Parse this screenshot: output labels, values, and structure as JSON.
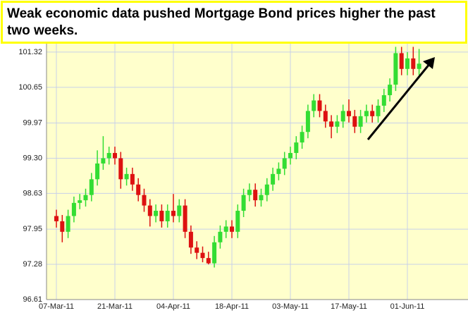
{
  "chart_data": {
    "type": "candlestick",
    "title": "Weak economic data pushed Mortgage Bond prices higher the past two weeks.",
    "categories": [
      "07-Mar-11",
      null,
      null,
      null,
      null,
      null,
      null,
      null,
      null,
      null,
      "21-Mar-11",
      null,
      null,
      null,
      null,
      null,
      null,
      null,
      null,
      null,
      "04-Apr-11",
      null,
      null,
      null,
      null,
      null,
      null,
      null,
      null,
      null,
      "18-Apr-11",
      null,
      null,
      null,
      null,
      null,
      null,
      null,
      null,
      null,
      "03-May-11",
      null,
      null,
      null,
      null,
      null,
      null,
      null,
      null,
      null,
      "17-May-11",
      null,
      null,
      null,
      null,
      null,
      null,
      null,
      null,
      null,
      "01-Jun-11",
      null,
      null
    ],
    "open": [
      98.2,
      98.1,
      97.9,
      98.2,
      98.45,
      98.5,
      98.6,
      98.9,
      99.2,
      99.3,
      99.4,
      99.3,
      98.9,
      99.0,
      98.8,
      98.6,
      98.4,
      98.2,
      98.3,
      98.1,
      98.3,
      98.2,
      98.4,
      97.9,
      97.6,
      97.5,
      97.4,
      97.3,
      97.7,
      97.9,
      98.0,
      97.9,
      98.3,
      98.6,
      98.7,
      98.5,
      98.6,
      98.8,
      99.0,
      99.1,
      99.3,
      99.4,
      99.6,
      99.8,
      100.2,
      100.4,
      100.2,
      100.0,
      99.9,
      100.0,
      100.2,
      100.1,
      99.9,
      100.1,
      100.2,
      100.1,
      100.3,
      100.5,
      100.7,
      101.3,
      101.0,
      101.2,
      101.0
    ],
    "high": [
      98.32,
      98.22,
      98.32,
      98.57,
      98.62,
      98.72,
      99.02,
      99.45,
      99.72,
      99.52,
      99.52,
      99.42,
      99.12,
      99.12,
      98.92,
      98.72,
      98.52,
      98.42,
      98.42,
      98.42,
      98.62,
      98.52,
      98.52,
      98.02,
      97.72,
      97.62,
      97.52,
      97.82,
      98.02,
      98.12,
      98.12,
      98.42,
      98.72,
      98.82,
      98.82,
      98.72,
      98.92,
      99.12,
      99.22,
      99.42,
      99.52,
      99.72,
      99.92,
      100.32,
      100.52,
      100.52,
      100.32,
      100.12,
      100.12,
      100.32,
      100.42,
      100.22,
      100.22,
      100.32,
      100.32,
      100.42,
      100.62,
      100.82,
      101.42,
      101.42,
      101.32,
      101.42,
      101.38
    ],
    "low": [
      97.98,
      97.7,
      97.78,
      98.08,
      98.33,
      98.38,
      98.48,
      98.78,
      99.08,
      99.18,
      99.18,
      98.72,
      98.78,
      98.68,
      98.48,
      98.28,
      98.0,
      98.08,
      97.98,
      97.98,
      98.08,
      98.08,
      97.78,
      97.48,
      97.38,
      97.32,
      97.28,
      97.22,
      97.58,
      97.78,
      97.78,
      97.78,
      98.18,
      98.48,
      98.38,
      98.38,
      98.48,
      98.68,
      98.88,
      98.98,
      99.18,
      99.28,
      99.48,
      99.68,
      100.08,
      100.08,
      99.88,
      99.68,
      99.78,
      99.88,
      99.98,
      99.78,
      99.78,
      99.98,
      99.98,
      99.98,
      100.18,
      100.38,
      100.58,
      100.88,
      100.88,
      100.88,
      100.88
    ],
    "close": [
      98.1,
      97.9,
      98.2,
      98.45,
      98.5,
      98.6,
      98.9,
      99.2,
      99.3,
      99.4,
      99.3,
      98.9,
      99.0,
      98.8,
      98.6,
      98.4,
      98.2,
      98.3,
      98.1,
      98.3,
      98.2,
      98.4,
      97.9,
      97.6,
      97.5,
      97.4,
      97.3,
      97.7,
      97.9,
      98.0,
      97.9,
      98.3,
      98.6,
      98.7,
      98.5,
      98.6,
      98.8,
      99.0,
      99.1,
      99.3,
      99.4,
      99.6,
      99.8,
      100.2,
      100.4,
      100.2,
      100.0,
      99.9,
      100.0,
      100.2,
      100.1,
      99.9,
      100.1,
      100.2,
      100.1,
      100.3,
      100.5,
      100.7,
      101.3,
      101.0,
      101.2,
      101.0,
      101.1
    ],
    "up_color": "#33dd33",
    "down_color": "#dd1111",
    "ylim": [
      96.61,
      101.48
    ],
    "yticks": [
      96.61,
      97.28,
      97.95,
      98.63,
      {
        "value": 99.3,
        "label": "99.30"
      },
      99.97,
      100.65,
      101.32
    ],
    "grid": true
  }
}
